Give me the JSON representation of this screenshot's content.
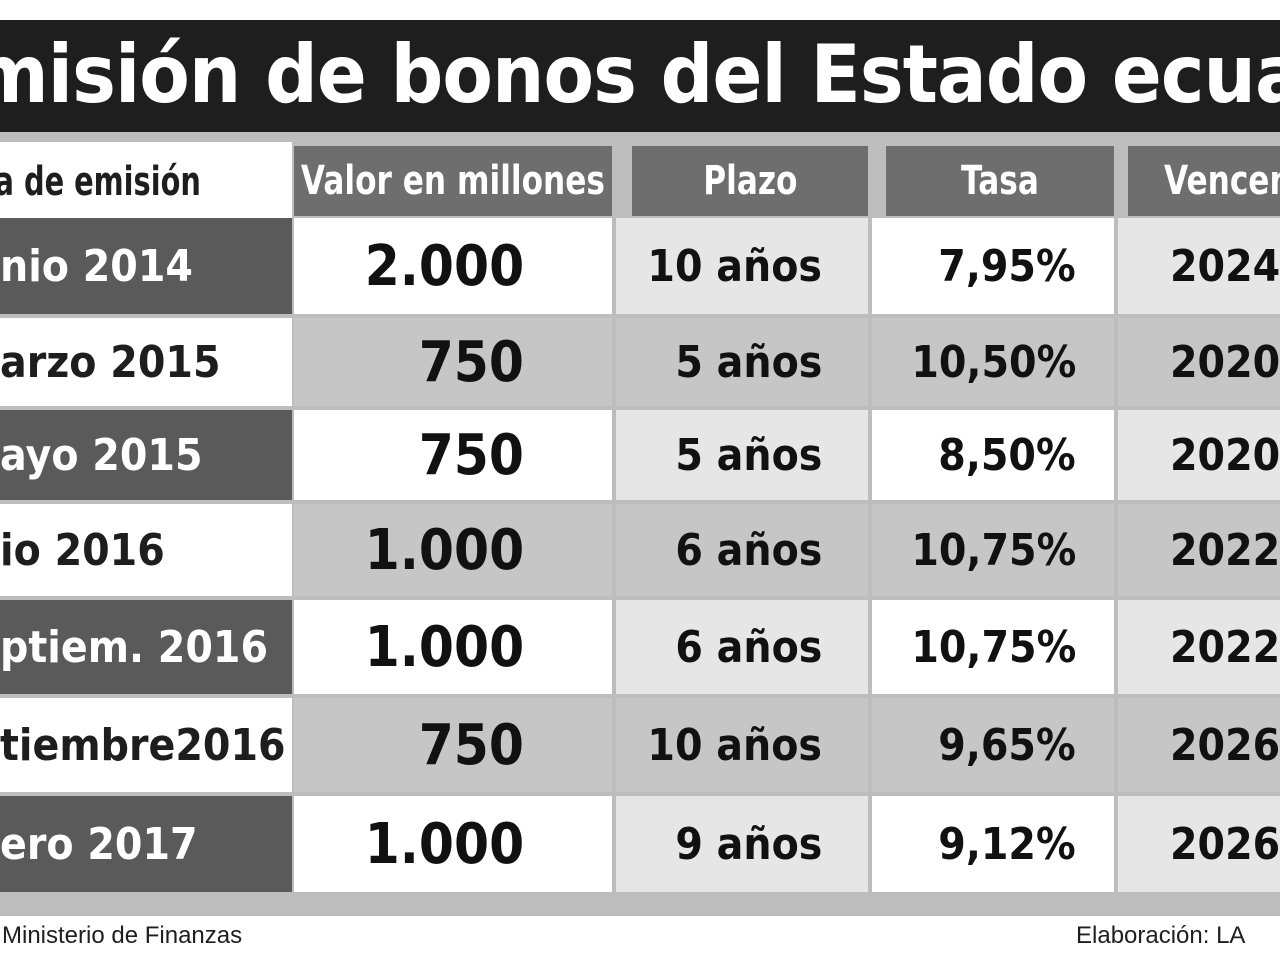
{
  "title": "misión de bonos del Estado ecuatoriano",
  "headers": {
    "fecha": "ha de emisión",
    "valor": "Valor en millones",
    "plazo": "Plazo",
    "tasa": "Tasa",
    "vencimiento": "Vencem"
  },
  "rows": [
    {
      "fecha": "nio 2014",
      "valor": "2.000",
      "plazo": "10 años",
      "tasa": "7,95%",
      "vencimiento": "2024"
    },
    {
      "fecha": "arzo 2015",
      "valor": "750",
      "plazo": "5 años",
      "tasa": "10,50%",
      "vencimiento": "2020"
    },
    {
      "fecha": "ayo 2015",
      "valor": "750",
      "plazo": "5 años",
      "tasa": "8,50%",
      "vencimiento": "2020"
    },
    {
      "fecha": "io 2016",
      "valor": "1.000",
      "plazo": "6 años",
      "tasa": "10,75%",
      "vencimiento": "2022"
    },
    {
      "fecha": "ptiem. 2016",
      "valor": "1.000",
      "plazo": "6 años",
      "tasa": "10,75%",
      "vencimiento": "2022"
    },
    {
      "fecha": "tiembre2016",
      "valor": "750",
      "plazo": "10 años",
      "tasa": "9,65%",
      "vencimiento": "2026"
    },
    {
      "fecha": "ero 2017",
      "valor": "1.000",
      "plazo": "9 años",
      "tasa": "9,12%",
      "vencimiento": "2026"
    }
  ],
  "footer": {
    "source": "Ministerio de Finanzas",
    "credit": "Elaboración: LA"
  }
}
